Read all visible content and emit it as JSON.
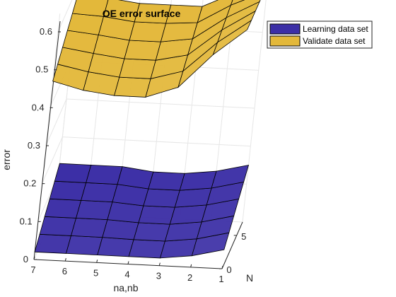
{
  "chart_data": {
    "type": "surface",
    "title": "OE error surface",
    "xlabel": "na,nb",
    "ylabel": "N",
    "zlabel": "error",
    "x_ticks": [
      "7",
      "6",
      "5",
      "4",
      "3",
      "2",
      "1"
    ],
    "y_ticks": [
      "0",
      "5"
    ],
    "z_ticks": [
      "0",
      "0.1",
      "0.2",
      "0.3",
      "0.4",
      "0.5",
      "0.6"
    ],
    "zlim": [
      0,
      0.6
    ],
    "grid": true,
    "legend_position": "top-right",
    "series": [
      {
        "name": "Learning data set",
        "color": "#3c2fa6",
        "values_front_by_x": [
          0.02,
          0.02,
          0.02,
          0.02,
          0.02,
          0.03,
          0.05
        ],
        "values_back_by_x": [
          0.13,
          0.13,
          0.13,
          0.12,
          0.12,
          0.13,
          0.15
        ]
      },
      {
        "name": "Validate data set",
        "color": "#e3b83a",
        "values_front_by_x": [
          0.47,
          0.45,
          0.44,
          0.44,
          0.47,
          0.56,
          0.63
        ],
        "values_back_by_x": [
          0.57,
          0.57,
          0.56,
          0.56,
          0.56,
          0.6,
          0.63
        ]
      }
    ]
  }
}
